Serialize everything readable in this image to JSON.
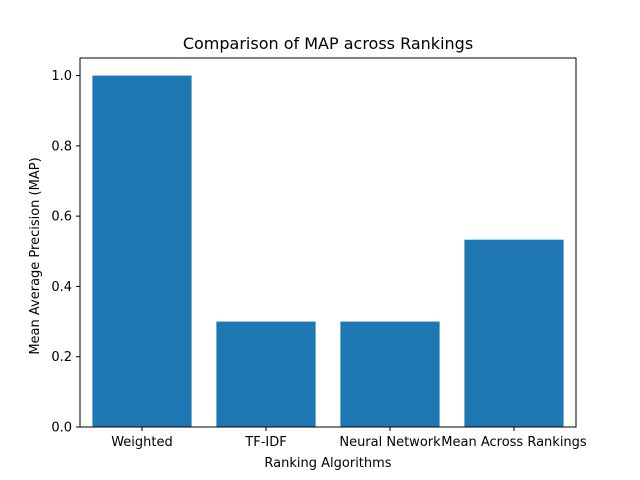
{
  "chart_data": {
    "type": "bar",
    "title": "Comparison of MAP across Rankings",
    "xlabel": "Ranking Algorithms",
    "ylabel": "Mean Average Precision (MAP)",
    "categories": [
      "Weighted",
      "TF-IDF",
      "Neural Network",
      "Mean Across Rankings"
    ],
    "values": [
      1.0,
      0.3,
      0.3,
      0.533
    ],
    "ylim": [
      0,
      1.05
    ],
    "yticks": [
      "0.0",
      "0.2",
      "0.4",
      "0.6",
      "0.8",
      "1.0"
    ],
    "bar_color": "#1f77b4",
    "grid": false
  }
}
